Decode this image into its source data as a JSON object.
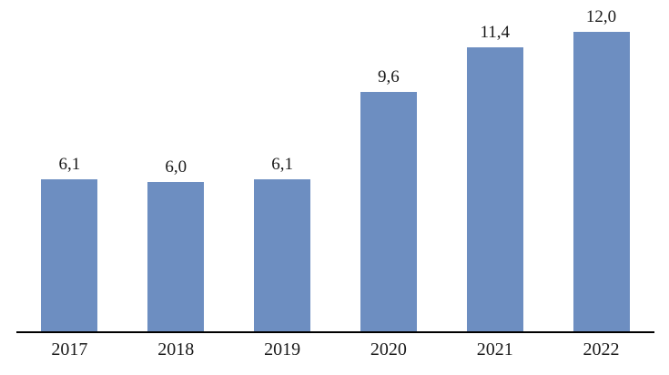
{
  "chart_data": {
    "type": "bar",
    "title": "",
    "xlabel": "",
    "ylabel": "",
    "categories": [
      "2017",
      "2018",
      "2019",
      "2020",
      "2021",
      "2022"
    ],
    "values": [
      6.1,
      6.0,
      6.1,
      9.6,
      11.4,
      12.0
    ],
    "value_labels": [
      "6,1",
      "6,0",
      "6,1",
      "9,6",
      "11,4",
      "12,0"
    ],
    "ylim": [
      0,
      13.4
    ],
    "grid": false,
    "legend": false,
    "bar_color": "#6d8ec1",
    "axis_color": "#000000",
    "label_color": "#1a1a1a"
  }
}
